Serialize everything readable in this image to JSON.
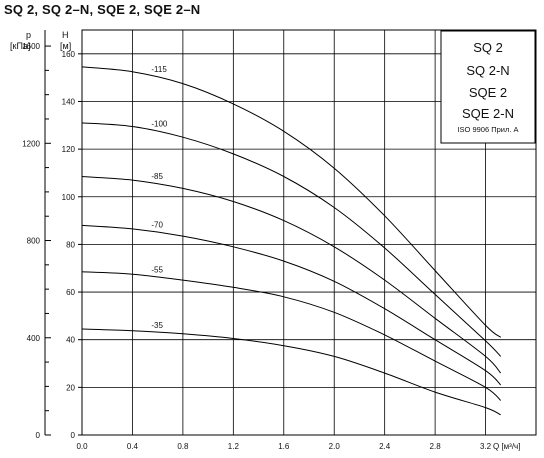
{
  "page": {
    "title": "SQ 2, SQ 2–N, SQE 2, SQE 2–N"
  },
  "legend": {
    "lines": [
      "SQ 2",
      "SQ 2-N",
      "SQE 2",
      "SQE 2-N"
    ],
    "note": "ISO 9906 Прил. A"
  },
  "chart_data": {
    "type": "line",
    "title": "SQ 2, SQ 2–N, SQE 2, SQE 2–N",
    "xlabel": "Q [м³/ч]",
    "ylabel": "H [м]",
    "y2label": "p [кПа]",
    "xlim": [
      0,
      3.6
    ],
    "ylim": [
      0,
      170
    ],
    "y2lim": [
      0,
      1666
    ],
    "grid": true,
    "x_ticks": [
      "0.0",
      "0.4",
      "0.8",
      "1.2",
      "1.6",
      "2.0",
      "2.4",
      "2.8",
      "3.2"
    ],
    "y_ticks": [
      "0",
      "20",
      "40",
      "60",
      "80",
      "100",
      "120",
      "140",
      "160"
    ],
    "y2_ticks": [
      "0",
      "400",
      "800",
      "1200",
      "1600"
    ],
    "series": [
      {
        "name": "-35",
        "label_at_x": 0.55,
        "x": [
          0,
          0.4,
          0.8,
          1.2,
          1.6,
          2.0,
          2.4,
          2.8,
          3.2,
          3.32
        ],
        "values": [
          44.5,
          43.8,
          42.5,
          40.5,
          37.5,
          33.0,
          26.0,
          18.0,
          11.5,
          8.5
        ]
      },
      {
        "name": "-55",
        "label_at_x": 0.55,
        "x": [
          0,
          0.4,
          0.8,
          1.2,
          1.6,
          2.0,
          2.4,
          2.8,
          3.2,
          3.32
        ],
        "values": [
          68.5,
          67.5,
          65.0,
          62.0,
          58.0,
          51.5,
          42.0,
          31.0,
          20.0,
          14.5
        ]
      },
      {
        "name": "-70",
        "label_at_x": 0.55,
        "x": [
          0,
          0.4,
          0.8,
          1.2,
          1.6,
          2.0,
          2.4,
          2.8,
          3.2,
          3.32
        ],
        "values": [
          88.0,
          86.5,
          83.5,
          79.0,
          73.0,
          64.5,
          53.0,
          40.0,
          27.0,
          21.0
        ]
      },
      {
        "name": "-85",
        "label_at_x": 0.55,
        "x": [
          0,
          0.4,
          0.8,
          1.2,
          1.6,
          2.0,
          2.4,
          2.8,
          3.2,
          3.32
        ],
        "values": [
          108.5,
          107.0,
          103.5,
          98.0,
          90.0,
          79.0,
          65.0,
          49.0,
          33.0,
          26.0
        ]
      },
      {
        "name": "-100",
        "label_at_x": 0.55,
        "x": [
          0,
          0.4,
          0.8,
          1.2,
          1.6,
          2.0,
          2.4,
          2.8,
          3.2,
          3.32
        ],
        "values": [
          131.0,
          129.5,
          125.0,
          118.0,
          108.5,
          95.5,
          78.5,
          59.0,
          39.5,
          33.0
        ]
      },
      {
        "name": "-115",
        "label_at_x": 0.55,
        "x": [
          0,
          0.4,
          0.8,
          1.2,
          1.6,
          2.0,
          2.4,
          2.8,
          3.2,
          3.32
        ],
        "values": [
          154.5,
          152.5,
          147.5,
          139.0,
          127.5,
          112.0,
          92.0,
          69.0,
          46.0,
          41.0
        ]
      }
    ]
  }
}
